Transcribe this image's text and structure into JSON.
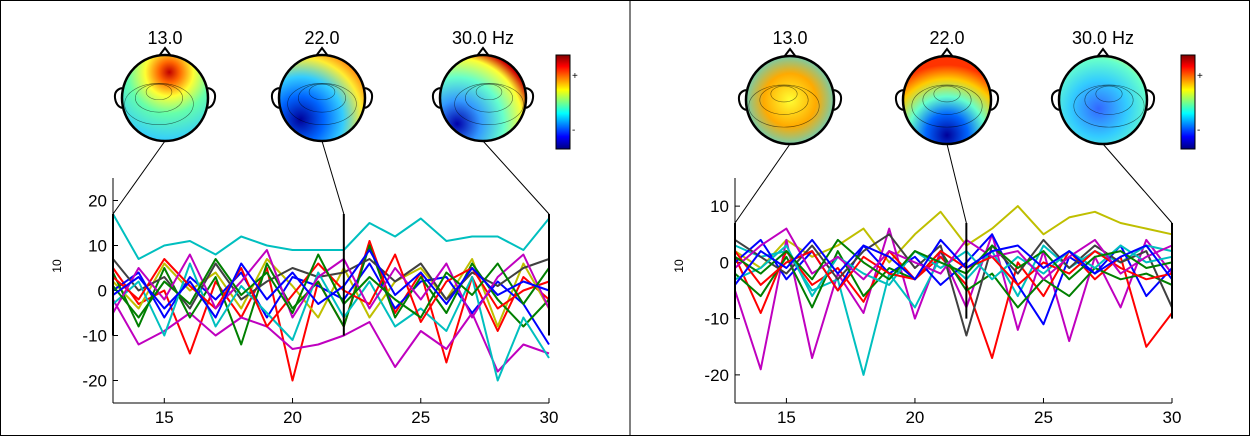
{
  "chart_data": [
    {
      "type": "line",
      "xlabel": "",
      "ylabel": "10",
      "xlim": [
        13,
        30
      ],
      "ylim": [
        -25,
        25
      ],
      "xticks": [
        "15",
        "20",
        "25",
        "30"
      ],
      "yticks": [
        "20",
        "10",
        "0",
        "-10",
        "-20"
      ],
      "topo_labels": [
        "13.0",
        "22.0",
        "30.0 Hz"
      ],
      "topo_freqs": [
        13,
        22,
        30
      ],
      "colorbar_labels": [
        "+",
        "-"
      ],
      "colors": [
        "#00bfbf",
        "#ff0000",
        "#bf00bf",
        "#bfbf00",
        "#0000ff",
        "#007f00",
        "#404040",
        "#00bfbf",
        "#ff0000",
        "#bf00bf",
        "#007f00",
        "#0000ff"
      ],
      "x": [
        13,
        14,
        15,
        16,
        17,
        18,
        19,
        20,
        21,
        22,
        23,
        24,
        25,
        26,
        27,
        28,
        29,
        30
      ],
      "series": [
        {
          "values": [
            17,
            7,
            10,
            11,
            8,
            12,
            10,
            9,
            9,
            9,
            15,
            12,
            16,
            11,
            12,
            12,
            9,
            16
          ]
        },
        {
          "values": [
            5,
            -3,
            0,
            -14,
            2,
            -6,
            5,
            -20,
            2,
            -8,
            11,
            -5,
            4,
            -16,
            3,
            -9,
            3,
            -2
          ]
        },
        {
          "values": [
            -2,
            -12,
            -9,
            -5,
            -10,
            -6,
            -8,
            -13,
            -12,
            -10,
            -7,
            -17,
            -9,
            -13,
            -5,
            -18,
            -12,
            -14
          ]
        },
        {
          "values": [
            2,
            -4,
            6,
            0,
            4,
            -4,
            7,
            1,
            -6,
            5,
            -6,
            2,
            5,
            -2,
            7,
            -8,
            6,
            -4
          ]
        },
        {
          "values": [
            0,
            4,
            -6,
            3,
            -2,
            4,
            -6,
            3,
            1,
            -2,
            6,
            -4,
            2,
            3,
            -5,
            2,
            -3,
            -12
          ]
        },
        {
          "values": [
            4,
            -8,
            5,
            -6,
            3,
            -12,
            6,
            -4,
            2,
            -8,
            10,
            -6,
            3,
            -5,
            6,
            -2,
            -8,
            -2
          ]
        },
        {
          "values": [
            7,
            0,
            3,
            -4,
            6,
            -2,
            2,
            5,
            3,
            4,
            7,
            2,
            6,
            -2,
            4,
            1,
            5,
            7
          ]
        },
        {
          "values": [
            -3,
            2,
            -10,
            6,
            -8,
            1,
            -5,
            -11,
            4,
            -6,
            2,
            -8,
            -4,
            -9,
            3,
            -20,
            -6,
            -15
          ]
        },
        {
          "values": [
            3,
            -2,
            7,
            1,
            -4,
            5,
            -8,
            -1,
            6,
            0,
            -3,
            8,
            -7,
            2,
            5,
            -4,
            0,
            2
          ]
        },
        {
          "values": [
            -5,
            5,
            -2,
            8,
            -4,
            2,
            9,
            -6,
            3,
            7,
            -4,
            5,
            -2,
            6,
            -6,
            3,
            8,
            -4
          ]
        },
        {
          "values": [
            1,
            -6,
            2,
            -3,
            7,
            -1,
            4,
            -5,
            8,
            -3,
            3,
            -2,
            -6,
            4,
            -1,
            6,
            -3,
            5
          ]
        },
        {
          "values": [
            -1,
            3,
            -4,
            2,
            -6,
            6,
            -2,
            4,
            -3,
            1,
            9,
            -1,
            4,
            -3,
            5,
            -1,
            2,
            0
          ]
        }
      ]
    },
    {
      "type": "line",
      "xlabel": "",
      "ylabel": "10",
      "xlim": [
        13,
        30
      ],
      "ylim": [
        -25,
        15
      ],
      "xticks": [
        "15",
        "20",
        "25",
        "30"
      ],
      "yticks": [
        "10",
        "0",
        "-10",
        "-20"
      ],
      "topo_labels": [
        "13.0",
        "22.0",
        "30.0 Hz"
      ],
      "topo_freqs": [
        13,
        22,
        30
      ],
      "colorbar_labels": [
        "+",
        "-"
      ],
      "colors": [
        "#bfbf00",
        "#bf00bf",
        "#00bfbf",
        "#ff0000",
        "#0000ff",
        "#007f00",
        "#404040",
        "#00bfbf",
        "#ff0000",
        "#bf00bf",
        "#007f00",
        "#0000ff"
      ],
      "x": [
        13,
        14,
        15,
        16,
        17,
        18,
        19,
        20,
        21,
        22,
        23,
        24,
        25,
        26,
        27,
        28,
        29,
        30
      ],
      "series": [
        {
          "values": [
            2,
            -1,
            4,
            1,
            3,
            6,
            0,
            5,
            9,
            3,
            6,
            10,
            5,
            8,
            9,
            7,
            6,
            5
          ]
        },
        {
          "values": [
            -5,
            -19,
            4,
            -17,
            -2,
            -9,
            6,
            -10,
            2,
            -8,
            5,
            -12,
            2,
            -14,
            1,
            -8,
            4,
            -2
          ]
        },
        {
          "values": [
            3,
            1,
            2,
            -5,
            -3,
            -20,
            -2,
            -8,
            1,
            -3,
            2,
            -6,
            3,
            -1,
            2,
            0,
            3,
            2
          ]
        },
        {
          "values": [
            1,
            -9,
            2,
            -4,
            -1,
            -7,
            2,
            -3,
            1,
            -4,
            -17,
            0,
            -6,
            2,
            -3,
            1,
            -15,
            -9
          ]
        },
        {
          "values": [
            0,
            4,
            -3,
            2,
            -5,
            3,
            -2,
            1,
            -4,
            0,
            5,
            -4,
            -11,
            1,
            -2,
            3,
            -6,
            -1
          ]
        },
        {
          "values": [
            -2,
            -6,
            1,
            -8,
            2,
            -6,
            -1,
            -3,
            2,
            -5,
            -2,
            -8,
            -3,
            -6,
            -1,
            -3,
            -2,
            -4
          ]
        },
        {
          "values": [
            4,
            1,
            -2,
            3,
            -3,
            2,
            5,
            -1,
            3,
            -13,
            3,
            -2,
            4,
            -1,
            3,
            0,
            2,
            -8
          ]
        },
        {
          "values": [
            -3,
            -1,
            3,
            -6,
            1,
            -2,
            -4,
            2,
            -1,
            2,
            -3,
            1,
            -2,
            2,
            -1,
            3,
            0,
            1
          ]
        },
        {
          "values": [
            2,
            -4,
            0,
            2,
            -5,
            1,
            -2,
            -3,
            2,
            -1,
            1,
            -4,
            0,
            -2,
            2,
            -1,
            -3,
            -2
          ]
        },
        {
          "values": [
            -1,
            3,
            6,
            -2,
            1,
            -3,
            2,
            0,
            -2,
            4,
            1,
            2,
            -3,
            1,
            4,
            -2,
            1,
            3
          ]
        },
        {
          "values": [
            1,
            -2,
            2,
            -3,
            4,
            0,
            -3,
            2,
            0,
            -2,
            3,
            -1,
            2,
            -3,
            1,
            2,
            -1,
            0
          ]
        },
        {
          "values": [
            -4,
            2,
            -1,
            4,
            -2,
            3,
            1,
            -3,
            4,
            -1,
            2,
            3,
            -1,
            2,
            -2,
            1,
            3,
            -3
          ]
        }
      ]
    }
  ]
}
